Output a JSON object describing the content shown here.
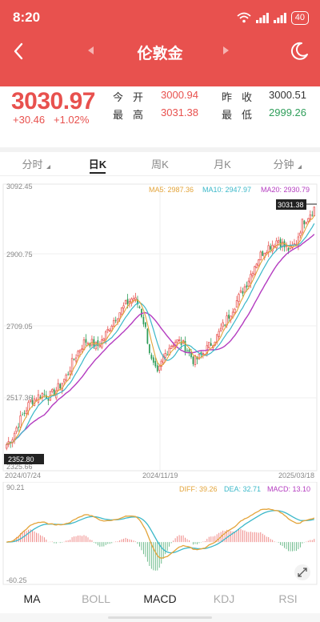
{
  "status": {
    "time": "8:20",
    "battery": "40"
  },
  "nav": {
    "title": "伦敦金"
  },
  "quote": {
    "price": "3030.97",
    "change": "+30.46",
    "change_pct": "+1.02%",
    "open_label": "今开",
    "open": "3000.94",
    "prev_close_label": "昨收",
    "prev_close": "3000.51",
    "high_label": "最高",
    "high": "3031.38",
    "low_label": "最低",
    "low": "2999.26"
  },
  "period_tabs": [
    {
      "label": "分时"
    },
    {
      "label": "日K"
    },
    {
      "label": "周K"
    },
    {
      "label": "月K"
    },
    {
      "label": "分钟"
    }
  ],
  "colors": {
    "brand": "#e8514e",
    "up": "#e8514e",
    "down": "#2f9e5a",
    "ma5": "#e3a43a",
    "ma10": "#3bb8c9",
    "ma20": "#b43cc0",
    "diff": "#e3a43a",
    "dea": "#3bb8c9",
    "macd": "#b43cc0"
  },
  "icons": {
    "back": "chevron-left-icon",
    "prev": "triangle-left-icon",
    "next": "triangle-right-icon",
    "theme": "moon-icon",
    "expand": "expand-icon"
  },
  "kline": {
    "legend_ma5": "MA5: 2987.36",
    "legend_ma10": "MA10: 2947.97",
    "legend_ma20": "MA20: 2930.79",
    "y_labels": [
      "3092.45",
      "2900.75",
      "2709.05",
      "2517.36",
      "2325.66"
    ],
    "x_labels": [
      "2024/07/24",
      "2024/11/19",
      "2025/03/18"
    ],
    "high_marker": "3031.38",
    "low_marker": "2352.80"
  },
  "macd_panel": {
    "legend_diff": "DIFF: 39.26",
    "legend_dea": "DEA: 32.71",
    "legend_macd": "MACD: 13.10",
    "top_label": "90.21",
    "bottom_label": "-60.25"
  },
  "indicator_tabs": [
    {
      "label": "MA"
    },
    {
      "label": "BOLL"
    },
    {
      "label": "MACD"
    },
    {
      "label": "KDJ"
    },
    {
      "label": "RSI"
    }
  ],
  "chart_data": {
    "type": "candlestick",
    "y_range": [
      2325.66,
      3092.45
    ],
    "x_start": "2024/07/24",
    "x_end": "2025/03/18",
    "anchor_closes": [
      2380,
      2400,
      2440,
      2470,
      2500,
      2510,
      2520,
      2512,
      2525,
      2545,
      2570,
      2610,
      2640,
      2665,
      2660,
      2650,
      2670,
      2700,
      2730,
      2750,
      2770,
      2785,
      2760,
      2700,
      2610,
      2570,
      2620,
      2650,
      2665,
      2660,
      2640,
      2610,
      2620,
      2640,
      2660,
      2680,
      2710,
      2740,
      2770,
      2800,
      2830,
      2870,
      2900,
      2920,
      2930,
      2945,
      2925,
      2915,
      2935,
      2990,
      3010,
      3031
    ]
  }
}
